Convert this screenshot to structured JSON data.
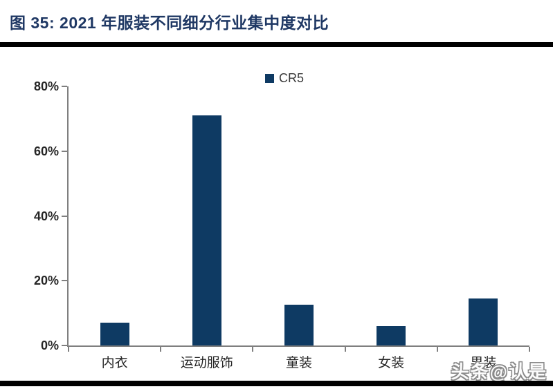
{
  "header": {
    "title": "图 35: 2021 年服装不同细分行业集中度对比"
  },
  "footer": {
    "watermark": "头条@认是"
  },
  "chart_data": {
    "type": "bar",
    "title": "2021 年服装不同细分行业集中度对比",
    "categories": [
      "内衣",
      "运动服饰",
      "童装",
      "女装",
      "男装"
    ],
    "series": [
      {
        "name": "CR5",
        "values": [
          7,
          71,
          12.5,
          6,
          14.5
        ]
      }
    ],
    "unit": "%",
    "xlabel": "",
    "ylabel": "",
    "ylim": [
      0,
      80
    ],
    "yticks": [
      0,
      20,
      40,
      60,
      80
    ],
    "ytick_labels": [
      "0%",
      "20%",
      "40%",
      "60%",
      "80%"
    ],
    "grid": false,
    "legend_position": "top-center"
  },
  "colors": {
    "title": "#1F3864",
    "bar": "#0E3A63",
    "axis": "#7F7F7F",
    "text": "#262626",
    "legend_text": "#3A3A3A",
    "rule": "#000000",
    "watermark_fill": "#FCFCFC",
    "watermark_outline": "#8A8A8A"
  }
}
